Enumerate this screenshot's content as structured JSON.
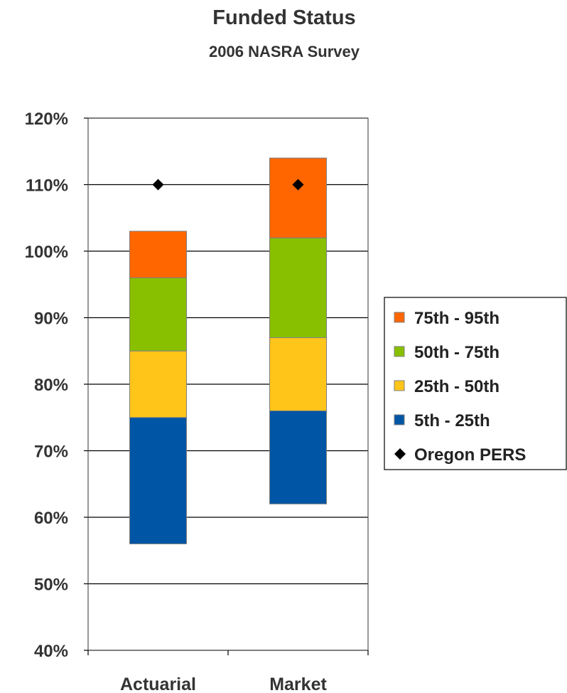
{
  "chart_data": {
    "type": "bar",
    "stacked": true,
    "floating": true,
    "title": "Funded Status",
    "subtitle": "2006 NASRA Survey",
    "categories": [
      "Actuarial",
      "Market"
    ],
    "ylim": [
      0.4,
      1.2
    ],
    "y_ticks": [
      {
        "value": 0.4,
        "label": "40%"
      },
      {
        "value": 0.5,
        "label": "50%"
      },
      {
        "value": 0.6,
        "label": "60%"
      },
      {
        "value": 0.7,
        "label": "70%"
      },
      {
        "value": 0.8,
        "label": "80%"
      },
      {
        "value": 0.9,
        "label": "90%"
      },
      {
        "value": 1.0,
        "label": "100%"
      },
      {
        "value": 1.1,
        "label": "110%"
      },
      {
        "value": 1.2,
        "label": "120%"
      }
    ],
    "grid": true,
    "series": [
      {
        "name": "5th - 25th",
        "color": "#0055a5",
        "ranges": [
          [
            0.56,
            0.75
          ],
          [
            0.62,
            0.76
          ]
        ]
      },
      {
        "name": "25th - 50th",
        "color": "#ffc519",
        "ranges": [
          [
            0.75,
            0.85
          ],
          [
            0.76,
            0.87
          ]
        ]
      },
      {
        "name": "50th - 75th",
        "color": "#88c000",
        "ranges": [
          [
            0.85,
            0.96
          ],
          [
            0.87,
            1.02
          ]
        ]
      },
      {
        "name": "75th - 95th",
        "color": "#ff6600",
        "ranges": [
          [
            0.96,
            1.03
          ],
          [
            1.02,
            1.14
          ]
        ]
      }
    ],
    "markers": {
      "name": "Oregon PERS",
      "shape": "diamond",
      "color": "#000000",
      "values": [
        1.1,
        1.1
      ]
    },
    "legend": {
      "placement": "right",
      "entries": [
        {
          "label": "75th - 95th",
          "color": "#ff6600",
          "kind": "box"
        },
        {
          "label": "50th - 75th",
          "color": "#88c000",
          "kind": "box"
        },
        {
          "label": "25th - 50th",
          "color": "#ffc519",
          "kind": "box"
        },
        {
          "label": "5th - 25th",
          "color": "#0055a5",
          "kind": "box"
        },
        {
          "label": "Oregon PERS",
          "color": "#000000",
          "kind": "diamond"
        }
      ]
    }
  }
}
